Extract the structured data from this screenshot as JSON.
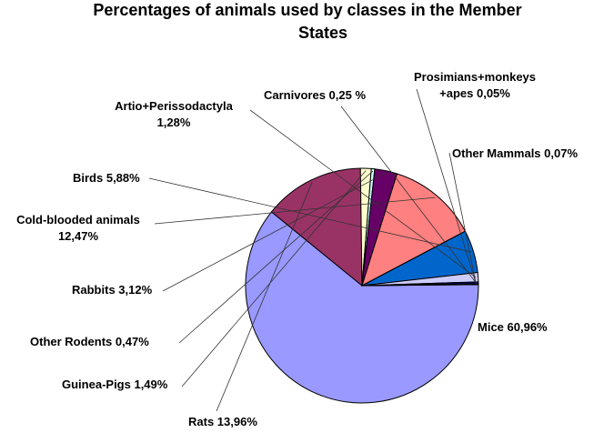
{
  "chart_data": {
    "type": "pie",
    "title_lines": [
      "Percentages of animals used by classes in the Member",
      "States"
    ],
    "slices": [
      {
        "name": "Mice",
        "label": "Mice 60,96%",
        "value": 60.96,
        "color": "#9999ff"
      },
      {
        "name": "Rats",
        "label": "Rats 13,96%",
        "value": 13.96,
        "color": "#993366"
      },
      {
        "name": "Guinea-Pigs",
        "label": "Guinea-Pigs 1,49%",
        "value": 1.49,
        "color": "#ffffcc"
      },
      {
        "name": "Other Rodents",
        "label": "Other Rodents  0,47%",
        "value": 0.47,
        "color": "#ccffff"
      },
      {
        "name": "Rabbits",
        "label": "Rabbits 3,12%",
        "value": 3.12,
        "color": "#660066"
      },
      {
        "name": "Cold-blooded animals",
        "label": [
          "Cold-blooded animals",
          "12,47%"
        ],
        "value": 12.47,
        "color": "#ff8080"
      },
      {
        "name": "Birds",
        "label": "Birds 5,88%",
        "value": 5.88,
        "color": "#0066cc"
      },
      {
        "name": "Artio+Perissodactyla",
        "label": [
          "Artio+Perissodactyla",
          "1,28%"
        ],
        "value": 1.28,
        "color": "#ccccff"
      },
      {
        "name": "Carnivores",
        "label": "Carnivores 0,25 %",
        "value": 0.25,
        "color": "#000080"
      },
      {
        "name": "Prosimians+monkeys+apes",
        "label": [
          "Prosimians+monkeys",
          "+apes 0,05%"
        ],
        "value": 0.05,
        "color": "#ff00ff"
      },
      {
        "name": "Other Mammals",
        "label": "Other Mammals 0,07%",
        "value": 0.07,
        "color": "#ffff00"
      }
    ]
  }
}
